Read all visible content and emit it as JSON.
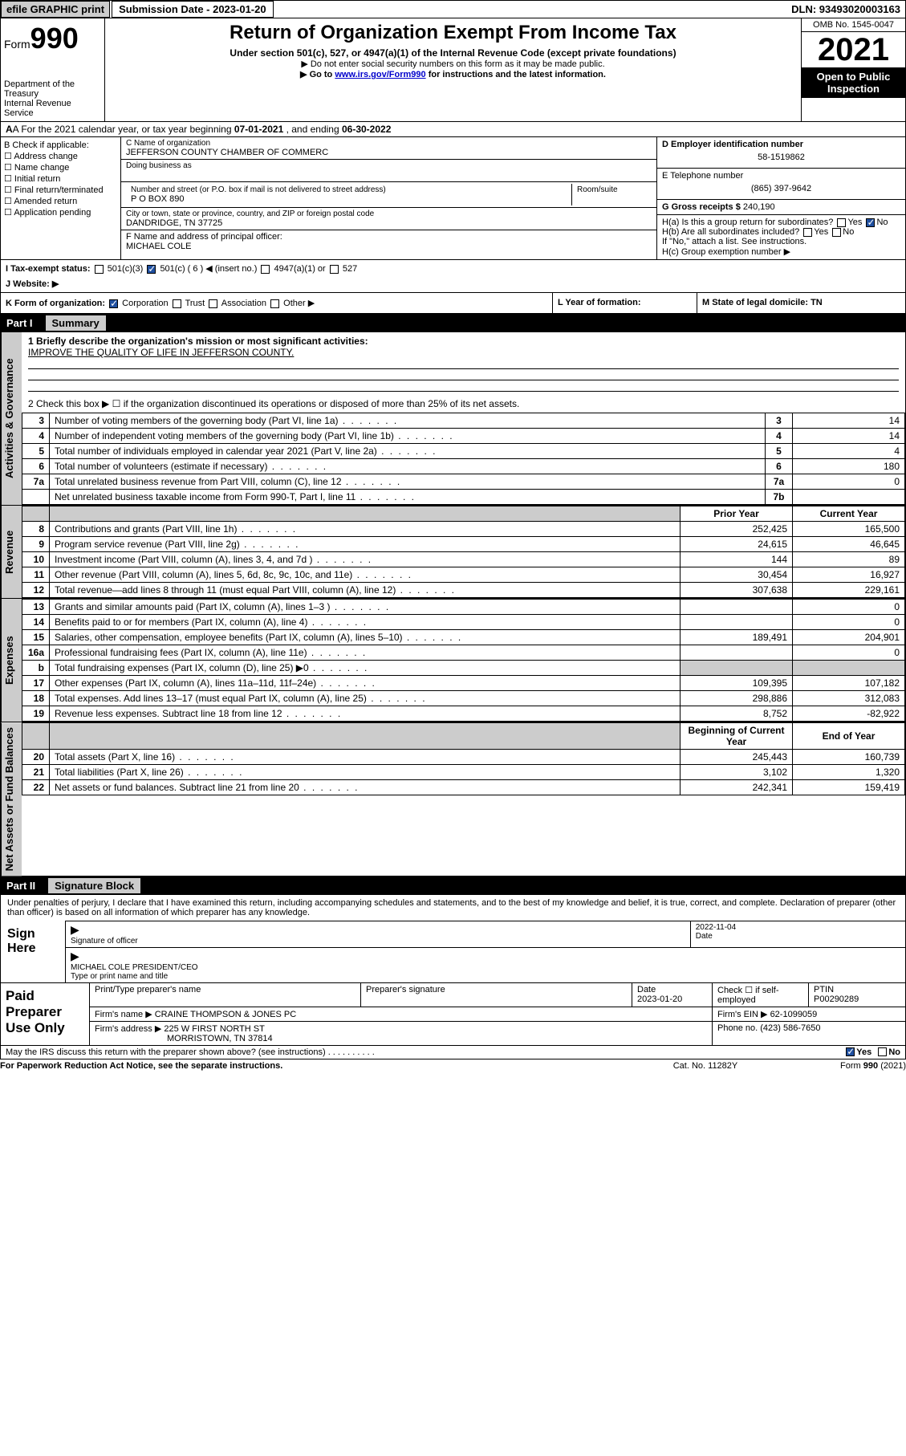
{
  "topbar": {
    "efile": "efile GRAPHIC print",
    "submission": "Submission Date - 2023-01-20",
    "dln": "DLN: 93493020003163"
  },
  "header": {
    "form_prefix": "Form",
    "form_no": "990",
    "dept": "Department of the Treasury",
    "irs": "Internal Revenue Service",
    "title": "Return of Organization Exempt From Income Tax",
    "sub": "Under section 501(c), 527, or 4947(a)(1) of the Internal Revenue Code (except private foundations)",
    "note1": "▶ Do not enter social security numbers on this form as it may be made public.",
    "note2_pre": "▶ Go to ",
    "note2_link": "www.irs.gov/Form990",
    "note2_post": " for instructions and the latest information.",
    "omb": "OMB No. 1545-0047",
    "year": "2021",
    "open": "Open to Public Inspection"
  },
  "row_a": {
    "label": "A For the 2021 calendar year, or tax year beginning ",
    "begin": "07-01-2021",
    "mid": " , and ending ",
    "end": "06-30-2022"
  },
  "col_b": {
    "title": "B Check if applicable:",
    "items": [
      "Address change",
      "Name change",
      "Initial return",
      "Final return/terminated",
      "Amended return",
      "Application pending"
    ]
  },
  "col_c": {
    "name_lbl": "C Name of organization",
    "name": "JEFFERSON COUNTY CHAMBER OF COMMERC",
    "dba_lbl": "Doing business as",
    "addr_lbl": "Number and street (or P.O. box if mail is not delivered to street address)",
    "room_lbl": "Room/suite",
    "addr": "P O BOX 890",
    "city_lbl": "City or town, state or province, country, and ZIP or foreign postal code",
    "city": "DANDRIDGE, TN  37725",
    "officer_lbl": "F Name and address of principal officer:",
    "officer": "MICHAEL COLE"
  },
  "col_right": {
    "ein_lbl": "D Employer identification number",
    "ein": "58-1519862",
    "phone_lbl": "E Telephone number",
    "phone": "(865) 397-9642",
    "gross_lbl": "G Gross receipts $ ",
    "gross": "240,190",
    "ha": "H(a)  Is this a group return for subordinates?",
    "hb": "H(b)  Are all subordinates included?",
    "hc_note": "If \"No,\" attach a list. See instructions.",
    "hc": "H(c)  Group exemption number ▶",
    "yes": "Yes",
    "no": "No"
  },
  "row_i": {
    "label": "I   Tax-exempt status:",
    "opt1": "501(c)(3)",
    "opt2": "501(c) ( 6 ) ◀ (insert no.)",
    "opt3": "4947(a)(1) or",
    "opt4": "527"
  },
  "row_j": {
    "label": "J   Website: ▶"
  },
  "row_k": {
    "label": "K Form of organization:",
    "corp": "Corporation",
    "trust": "Trust",
    "assoc": "Association",
    "other": "Other ▶",
    "l": "L Year of formation:",
    "m": "M State of legal domicile: TN"
  },
  "part1": {
    "hdr_lbl": "Part I",
    "hdr_ttl": "Summary",
    "side_gov": "Activities & Governance",
    "side_rev": "Revenue",
    "side_exp": "Expenses",
    "side_net": "Net Assets or Fund Balances",
    "q1": "1  Briefly describe the organization's mission or most significant activities:",
    "q1a": "IMPROVE THE QUALITY OF LIFE IN JEFFERSON COUNTY.",
    "q2": "2   Check this box ▶ ☐  if the organization discontinued its operations or disposed of more than 25% of its net assets.",
    "hdr_prior": "Prior Year",
    "hdr_curr": "Current Year",
    "hdr_begin": "Beginning of Current Year",
    "hdr_end": "End of Year",
    "rows_gov": [
      {
        "n": "3",
        "t": "Number of voting members of the governing body (Part VI, line 1a)",
        "k": "3",
        "v": "14"
      },
      {
        "n": "4",
        "t": "Number of independent voting members of the governing body (Part VI, line 1b)",
        "k": "4",
        "v": "14"
      },
      {
        "n": "5",
        "t": "Total number of individuals employed in calendar year 2021 (Part V, line 2a)",
        "k": "5",
        "v": "4"
      },
      {
        "n": "6",
        "t": "Total number of volunteers (estimate if necessary)",
        "k": "6",
        "v": "180"
      },
      {
        "n": "7a",
        "t": "Total unrelated business revenue from Part VIII, column (C), line 12",
        "k": "7a",
        "v": "0"
      },
      {
        "n": "",
        "t": "Net unrelated business taxable income from Form 990-T, Part I, line 11",
        "k": "7b",
        "v": ""
      }
    ],
    "rows_rev": [
      {
        "n": "8",
        "t": "Contributions and grants (Part VIII, line 1h)",
        "p": "252,425",
        "c": "165,500"
      },
      {
        "n": "9",
        "t": "Program service revenue (Part VIII, line 2g)",
        "p": "24,615",
        "c": "46,645"
      },
      {
        "n": "10",
        "t": "Investment income (Part VIII, column (A), lines 3, 4, and 7d )",
        "p": "144",
        "c": "89"
      },
      {
        "n": "11",
        "t": "Other revenue (Part VIII, column (A), lines 5, 6d, 8c, 9c, 10c, and 11e)",
        "p": "30,454",
        "c": "16,927"
      },
      {
        "n": "12",
        "t": "Total revenue—add lines 8 through 11 (must equal Part VIII, column (A), line 12)",
        "p": "307,638",
        "c": "229,161"
      }
    ],
    "rows_exp": [
      {
        "n": "13",
        "t": "Grants and similar amounts paid (Part IX, column (A), lines 1–3 )",
        "p": "",
        "c": "0"
      },
      {
        "n": "14",
        "t": "Benefits paid to or for members (Part IX, column (A), line 4)",
        "p": "",
        "c": "0"
      },
      {
        "n": "15",
        "t": "Salaries, other compensation, employee benefits (Part IX, column (A), lines 5–10)",
        "p": "189,491",
        "c": "204,901"
      },
      {
        "n": "16a",
        "t": "Professional fundraising fees (Part IX, column (A), line 11e)",
        "p": "",
        "c": "0"
      },
      {
        "n": "b",
        "t": "Total fundraising expenses (Part IX, column (D), line 25) ▶0",
        "p": "shade",
        "c": "shade"
      },
      {
        "n": "17",
        "t": "Other expenses (Part IX, column (A), lines 11a–11d, 11f–24e)",
        "p": "109,395",
        "c": "107,182"
      },
      {
        "n": "18",
        "t": "Total expenses. Add lines 13–17 (must equal Part IX, column (A), line 25)",
        "p": "298,886",
        "c": "312,083"
      },
      {
        "n": "19",
        "t": "Revenue less expenses. Subtract line 18 from line 12",
        "p": "8,752",
        "c": "-82,922"
      }
    ],
    "rows_net": [
      {
        "n": "20",
        "t": "Total assets (Part X, line 16)",
        "p": "245,443",
        "c": "160,739"
      },
      {
        "n": "21",
        "t": "Total liabilities (Part X, line 26)",
        "p": "3,102",
        "c": "1,320"
      },
      {
        "n": "22",
        "t": "Net assets or fund balances. Subtract line 21 from line 20",
        "p": "242,341",
        "c": "159,419"
      }
    ]
  },
  "part2": {
    "hdr_lbl": "Part II",
    "hdr_ttl": "Signature Block",
    "decl": "Under penalties of perjury, I declare that I have examined this return, including accompanying schedules and statements, and to the best of my knowledge and belief, it is true, correct, and complete. Declaration of preparer (other than officer) is based on all information of which preparer has any knowledge.",
    "sign_here": "Sign Here",
    "sig_officer": "Signature of officer",
    "sig_date": "Date",
    "sig_date_val": "2022-11-04",
    "sig_name": "MICHAEL COLE  PRESIDENT/CEO",
    "sig_name_lbl": "Type or print name and title",
    "paid": "Paid Preparer Use Only",
    "prep_name_lbl": "Print/Type preparer's name",
    "prep_sig_lbl": "Preparer's signature",
    "prep_date_lbl": "Date",
    "prep_date": "2023-01-20",
    "prep_check": "Check ☐ if self-employed",
    "ptin_lbl": "PTIN",
    "ptin": "P00290289",
    "firm_name_lbl": "Firm's name    ▶ ",
    "firm_name": "CRAINE THOMPSON & JONES PC",
    "firm_ein_lbl": "Firm's EIN ▶ ",
    "firm_ein": "62-1099059",
    "firm_addr_lbl": "Firm's address ▶ ",
    "firm_addr": "225 W FIRST NORTH ST",
    "firm_city": "MORRISTOWN, TN  37814",
    "firm_phone_lbl": "Phone no. ",
    "firm_phone": "(423) 586-7650",
    "discuss": "May the IRS discuss this return with the preparer shown above? (see instructions)",
    "yes": "Yes",
    "no": "No"
  },
  "footer": {
    "pra": "For Paperwork Reduction Act Notice, see the separate instructions.",
    "cat": "Cat. No. 11282Y",
    "form": "Form 990 (2021)"
  }
}
